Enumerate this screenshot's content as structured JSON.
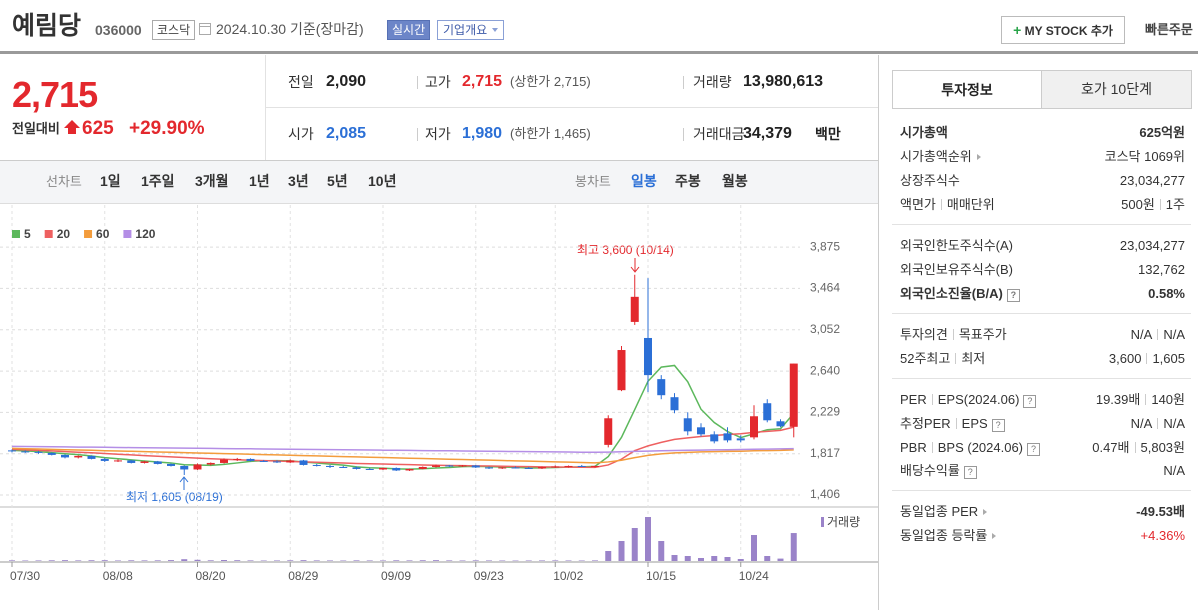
{
  "header": {
    "name": "예림당",
    "code": "036000",
    "market": "코스닥",
    "date": "2024.10.30 기준(장마감)",
    "realtime": "실시간",
    "overview": "기업개요",
    "mystock": "MY STOCK 추가",
    "quick_order": "빠른주문"
  },
  "quote": {
    "price": "2,715",
    "change_label": "전일대비",
    "change": "625",
    "rate": "+29.90%",
    "cells": [
      {
        "label": "전일",
        "value": "2,090"
      },
      {
        "label": "고가",
        "value": "2,715",
        "note": "(상한가 2,715)"
      },
      {
        "label": "거래량",
        "value": "13,980,613"
      },
      {
        "label": "시가",
        "value": "2,085"
      },
      {
        "label": "저가",
        "value": "1,980",
        "note": "(하한가 1,465)"
      },
      {
        "label": "거래대금",
        "value": "34,379",
        "unit": "백만"
      }
    ]
  },
  "period": {
    "line_label": "선차트",
    "line_items": [
      "1일",
      "1주일",
      "3개월",
      "1년",
      "3년",
      "5년",
      "10년"
    ],
    "candle_label": "봉차트",
    "candle_items": [
      "일봉",
      "주봉",
      "월봉"
    ]
  },
  "info": {
    "tabs": [
      "투자정보",
      "호가 10단계"
    ],
    "rows": [
      {
        "label": "시가총액",
        "value": "625억원"
      },
      {
        "label": "시가총액순위",
        "value": "코스닥 1069위"
      },
      {
        "label": "상장주식수",
        "value": "23,034,277"
      },
      {
        "label": "액면가",
        "label2": "매매단위",
        "value": "500원",
        "value2": "1주"
      },
      {
        "label": "외국인한도주식수(A)",
        "value": "23,034,277"
      },
      {
        "label": "외국인보유주식수(B)",
        "value": "132,762"
      },
      {
        "label": "외국인소진율(B/A)",
        "value": "0.58%"
      },
      {
        "label": "투자의견",
        "label2": "목표주가",
        "value": "N/A",
        "value2": "N/A"
      },
      {
        "label": "52주최고",
        "label2": "최저",
        "value": "3,600",
        "value2": "1,605"
      },
      {
        "label": "PER",
        "label2": "EPS(2024.06)",
        "value": "19.39배",
        "value2": "140원"
      },
      {
        "label": "추정PER",
        "label2": "EPS",
        "value": "N/A",
        "value2": "N/A"
      },
      {
        "label": "PBR",
        "label2": "BPS (2024.06)",
        "value": "0.47배",
        "value2": "5,803원"
      },
      {
        "label": "배당수익률",
        "value": "N/A"
      },
      {
        "label": "동일업종 PER",
        "value": "-49.53배"
      },
      {
        "label": "동일업종 등락률",
        "value": "+4.36%"
      }
    ]
  },
  "chart_data": {
    "type": "candlestick",
    "categories": [
      "07/30",
      null,
      null,
      null,
      null,
      null,
      null,
      "08/08",
      null,
      null,
      null,
      null,
      null,
      null,
      "08/20",
      null,
      null,
      null,
      null,
      null,
      null,
      "08/29",
      null,
      null,
      null,
      null,
      null,
      null,
      "09/09",
      null,
      null,
      null,
      null,
      null,
      null,
      "09/23",
      null,
      null,
      null,
      null,
      null,
      "10/02",
      null,
      null,
      null,
      null,
      null,
      null,
      "10/15",
      null,
      null,
      null,
      null,
      null,
      null,
      "10/24",
      null,
      null,
      null,
      null
    ],
    "open": [
      1850,
      1840,
      1835,
      1825,
      1805,
      1780,
      1795,
      1765,
      1745,
      1750,
      1725,
      1740,
      1715,
      1695,
      1660,
      1710,
      1725,
      1760,
      1765,
      1745,
      1740,
      1730,
      1750,
      1705,
      1695,
      1685,
      1680,
      1665,
      1660,
      1675,
      1650,
      1665,
      1685,
      1700,
      1690,
      1700,
      1680,
      1670,
      1680,
      1675,
      1670,
      1685,
      1690,
      1695,
      1690,
      1905,
      2450,
      3130,
      2970,
      2560,
      2380,
      2170,
      2080,
      2010,
      2020,
      1970,
      1980,
      2320,
      2140,
      2085
    ],
    "high": [
      1860,
      1850,
      1845,
      1830,
      1810,
      1800,
      1800,
      1775,
      1760,
      1755,
      1745,
      1745,
      1720,
      1700,
      1720,
      1730,
      1770,
      1775,
      1770,
      1755,
      1750,
      1760,
      1755,
      1715,
      1705,
      1695,
      1690,
      1675,
      1680,
      1680,
      1670,
      1690,
      1710,
      1705,
      1705,
      1705,
      1690,
      1685,
      1690,
      1685,
      1690,
      1700,
      1700,
      1705,
      1700,
      2200,
      2890,
      3600,
      3566,
      2600,
      2420,
      2230,
      2120,
      2040,
      2080,
      2000,
      2300,
      2360,
      2160,
      2715
    ],
    "low": [
      1830,
      1825,
      1815,
      1800,
      1770,
      1770,
      1760,
      1735,
      1735,
      1720,
      1720,
      1710,
      1690,
      1605,
      1655,
      1700,
      1720,
      1745,
      1740,
      1735,
      1725,
      1725,
      1700,
      1690,
      1675,
      1675,
      1660,
      1655,
      1655,
      1645,
      1645,
      1660,
      1680,
      1685,
      1685,
      1675,
      1665,
      1665,
      1670,
      1665,
      1665,
      1675,
      1680,
      1685,
      1680,
      1880,
      2440,
      3100,
      2430,
      2360,
      2220,
      2000,
      1990,
      1920,
      1930,
      1930,
      1960,
      2130,
      2080,
      1980
    ],
    "close": [
      1840,
      1835,
      1825,
      1805,
      1780,
      1795,
      1765,
      1745,
      1750,
      1725,
      1740,
      1715,
      1695,
      1660,
      1710,
      1725,
      1760,
      1765,
      1745,
      1740,
      1730,
      1750,
      1705,
      1695,
      1685,
      1680,
      1665,
      1660,
      1675,
      1650,
      1665,
      1685,
      1700,
      1690,
      1700,
      1680,
      1670,
      1680,
      1675,
      1670,
      1685,
      1690,
      1695,
      1690,
      1695,
      2170,
      2850,
      3380,
      2600,
      2400,
      2250,
      2040,
      2010,
      1940,
      1950,
      1950,
      2190,
      2150,
      2090,
      2715
    ],
    "volume": [
      320000,
      250000,
      280000,
      350000,
      420000,
      300000,
      380000,
      400000,
      260000,
      350000,
      300000,
      330000,
      450000,
      900000,
      600000,
      350000,
      500000,
      400000,
      300000,
      250000,
      280000,
      350000,
      420000,
      300000,
      280000,
      250000,
      330000,
      280000,
      260000,
      350000,
      300000,
      380000,
      420000,
      300000,
      260000,
      320000,
      280000,
      250000,
      230000,
      260000,
      280000,
      300000,
      270000,
      250000,
      300000,
      5000000,
      10000000,
      16500000,
      22000000,
      10000000,
      3000000,
      2500000,
      1500000,
      2500000,
      2000000,
      1000000,
      13000000,
      2500000,
      1200000,
      13980613
    ],
    "volume_label": "거래량",
    "volume_lim": [
      0,
      26000000
    ],
    "up_color": "#e3282d",
    "down_color": "#2b6fd6",
    "volume_color": "#9a83c9",
    "series": [
      {
        "name": "5",
        "color": "#5cb85c",
        "values": [
          1850,
          1845,
          1838,
          1828,
          1817,
          1808,
          1794,
          1778,
          1767,
          1756,
          1745,
          1735,
          1725,
          1707,
          1704,
          1701,
          1711,
          1725,
          1741,
          1747,
          1748,
          1746,
          1734,
          1724,
          1713,
          1703,
          1686,
          1677,
          1673,
          1666,
          1663,
          1667,
          1675,
          1680,
          1688,
          1691,
          1688,
          1684,
          1681,
          1675,
          1676,
          1680,
          1683,
          1686,
          1691,
          1788,
          1980,
          2257,
          2539,
          2680,
          2696,
          2534,
          2260,
          2128,
          2038,
          1978,
          2016,
          2056,
          2066,
          2219
        ]
      },
      {
        "name": "20",
        "color": "#ee6060",
        "values": [
          1860,
          1855,
          1850,
          1845,
          1838,
          1832,
          1826,
          1819,
          1812,
          1805,
          1798,
          1792,
          1786,
          1779,
          1773,
          1767,
          1762,
          1757,
          1752,
          1748,
          1744,
          1740,
          1736,
          1732,
          1728,
          1724,
          1720,
          1717,
          1714,
          1711,
          1708,
          1705,
          1702,
          1700,
          1698,
          1696,
          1694,
          1692,
          1690,
          1688,
          1686,
          1684,
          1683,
          1682,
          1681,
          1705,
          1763,
          1848,
          1895,
          1930,
          1960,
          1975,
          1988,
          1998,
          2008,
          2016,
          2030,
          2040,
          2050,
          2082
        ]
      },
      {
        "name": "60",
        "color": "#f39c3c",
        "values": [
          1870,
          1867,
          1864,
          1860,
          1857,
          1854,
          1851,
          1847,
          1844,
          1841,
          1838,
          1834,
          1831,
          1828,
          1824,
          1821,
          1818,
          1815,
          1811,
          1808,
          1805,
          1802,
          1798,
          1795,
          1792,
          1788,
          1785,
          1782,
          1779,
          1775,
          1772,
          1769,
          1766,
          1762,
          1759,
          1756,
          1753,
          1749,
          1746,
          1743,
          1740,
          1736,
          1733,
          1730,
          1726,
          1735,
          1752,
          1778,
          1800,
          1815,
          1825,
          1830,
          1835,
          1838,
          1840,
          1842,
          1846,
          1848,
          1850,
          1855
        ]
      },
      {
        "name": "120",
        "color": "#b48ee6",
        "values": [
          1890,
          1889,
          1887,
          1886,
          1885,
          1883,
          1882,
          1881,
          1879,
          1878,
          1877,
          1875,
          1874,
          1873,
          1871,
          1870,
          1868,
          1867,
          1866,
          1864,
          1863,
          1862,
          1860,
          1859,
          1858,
          1856,
          1855,
          1854,
          1852,
          1851,
          1850,
          1848,
          1847,
          1846,
          1844,
          1843,
          1842,
          1840,
          1839,
          1838,
          1836,
          1835,
          1834,
          1832,
          1831,
          1833,
          1836,
          1840,
          1843,
          1846,
          1849,
          1851,
          1853,
          1855,
          1857,
          1859,
          1861,
          1863,
          1865,
          1868
        ]
      }
    ],
    "ylim": [
      1306,
      4245
    ],
    "yticks": [
      {
        "value": 1406,
        "label": "1,406"
      },
      {
        "value": 1817,
        "label": "1,817"
      },
      {
        "value": 2229,
        "label": "2,229"
      },
      {
        "value": 2640,
        "label": "2,640"
      },
      {
        "value": 3052,
        "label": "3,052"
      },
      {
        "value": 3464,
        "label": "3,464"
      },
      {
        "value": 3875,
        "label": "3,875"
      }
    ],
    "grid": true,
    "annotations": [
      "최고 3,600 (10/14)",
      "최저 1,605 (08/19)"
    ]
  }
}
